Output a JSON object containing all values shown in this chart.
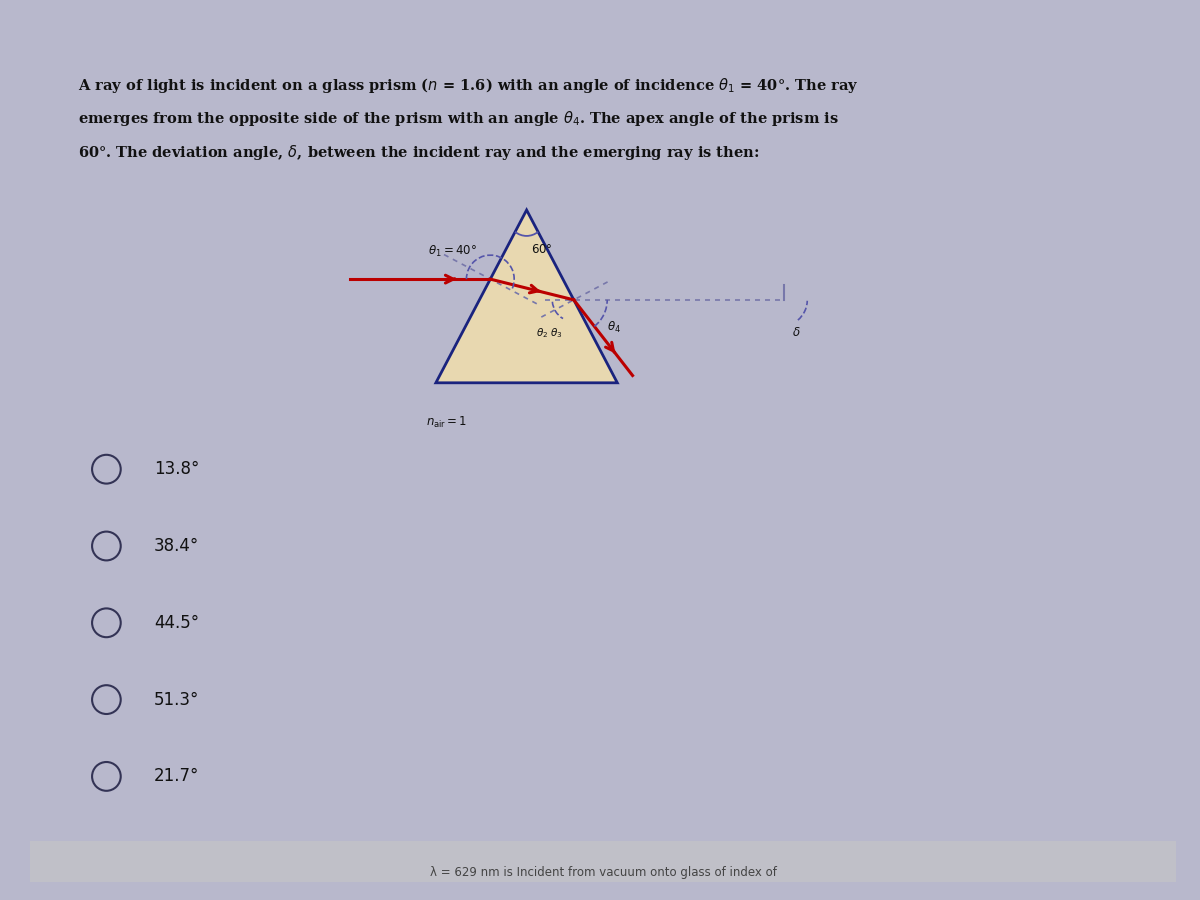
{
  "bg_color": "#b8b8cc",
  "card_color": "#e8e8e8",
  "choices": [
    "13.8°",
    "38.4°",
    "44.5°",
    "51.3°",
    "21.7°"
  ],
  "prism_color": "#1a237e",
  "ray_color": "#bb0000",
  "dashed_color": "#7777aa",
  "arc_color": "#5555aa",
  "text_color": "#111111",
  "choice_color": "#333355",
  "bottom_text": "λ = 629 nm is Incident from vacuum onto glass of index of",
  "title_line1": "A ray of light is incident on a glass prism (",
  "title_n": "n",
  "title_line1b": " = 1.6) with an angle of incidence θ",
  "title_line1c": "1",
  "title_line1d": " = 40°. The ray",
  "title_line2": "emerges from the opposite side of the prism with an angle θ",
  "title_line2b": "4",
  "title_line2c": ". The apex angle of the prism is",
  "title_line3": "60°. The deviation angle, δ, between the incident ray and the emerging ray is then:"
}
